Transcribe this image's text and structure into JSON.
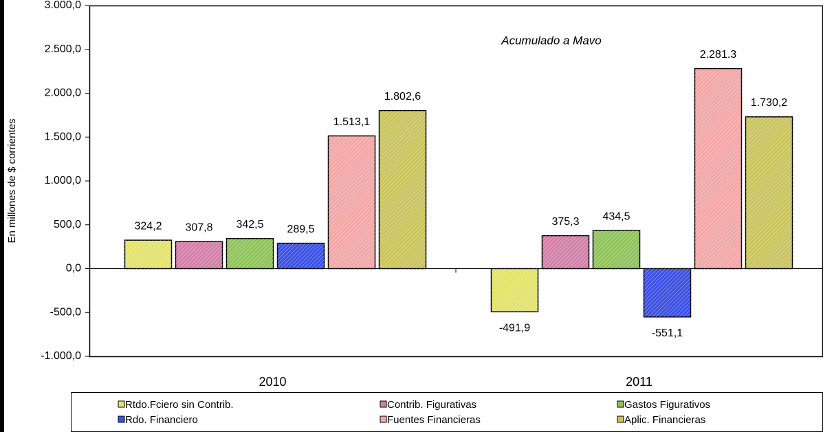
{
  "chart_data": {
    "type": "bar",
    "y_axis_label": "En millones de $ corrientes",
    "annotation": "Acumulado a Mavo",
    "categories": [
      "2010",
      "2011"
    ],
    "series": [
      {
        "name": "Rtdo.Fciero sin Contrib.",
        "color": "#e3e36a",
        "values": [
          324.2,
          -491.9
        ],
        "value_labels": [
          "324,2",
          "-491,9"
        ]
      },
      {
        "name": "Contrib. Figurativas",
        "color": "#d27fa8",
        "values": [
          307.8,
          375.3
        ],
        "value_labels": [
          "307,8",
          "375,3"
        ]
      },
      {
        "name": "Gastos Figurativos",
        "color": "#8fc25a",
        "values": [
          342.5,
          434.5
        ],
        "value_labels": [
          "342,5",
          "434,5"
        ]
      },
      {
        "name": "Rdo. Financiero",
        "color": "#3a50e6",
        "values": [
          289.5,
          -551.1
        ],
        "value_labels": [
          "289,5",
          "-551,1"
        ]
      },
      {
        "name": "Fuentes Financieras",
        "color": "#f3a6a6",
        "values": [
          1513.1,
          2281.3
        ],
        "value_labels": [
          "1.513,1",
          "2.281.3"
        ]
      },
      {
        "name": "Aplic. Financieras",
        "color": "#c9c45c",
        "values": [
          1802.6,
          1730.2
        ],
        "value_labels": [
          "1.802,6",
          "1.730,2"
        ]
      }
    ],
    "ylim": [
      -1000,
      3000
    ],
    "yticks": [
      {
        "value": -1000,
        "label": "-1.000,0"
      },
      {
        "value": -500,
        "label": "-500,0"
      },
      {
        "value": 0,
        "label": "0,0"
      },
      {
        "value": 500,
        "label": "500,0"
      },
      {
        "value": 1000,
        "label": "1.000,0"
      },
      {
        "value": 1500,
        "label": "1.500,0"
      },
      {
        "value": 2000,
        "label": "2.000,0"
      },
      {
        "value": 2500,
        "label": "2.500,0"
      },
      {
        "value": 3000,
        "label": "3.000,0"
      }
    ],
    "legend": "bottom"
  }
}
